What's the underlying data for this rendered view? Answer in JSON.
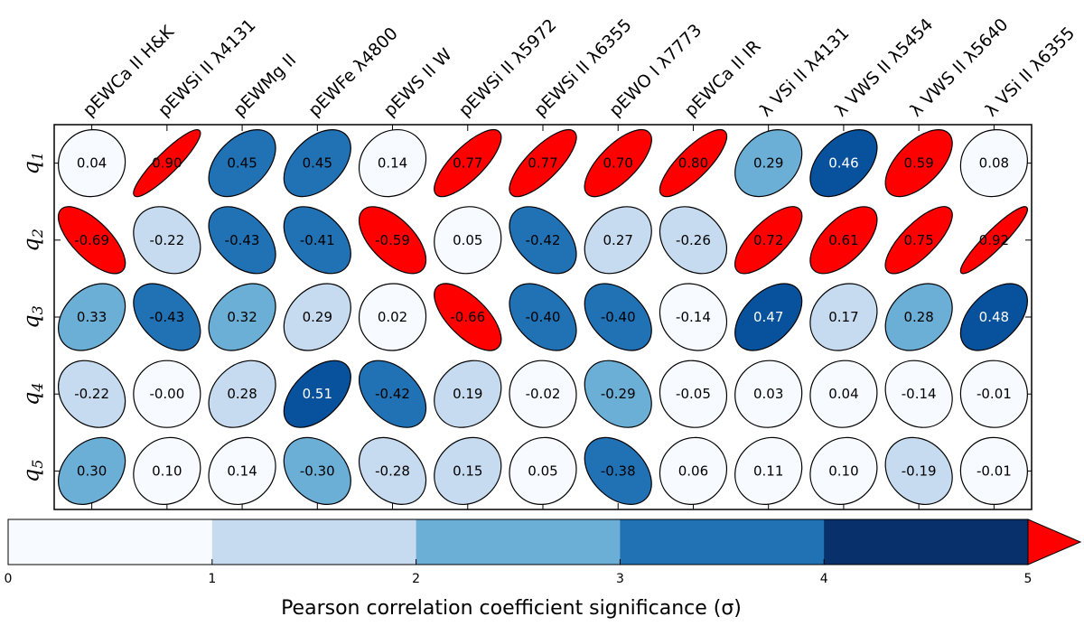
{
  "chart_data": {
    "type": "heatmap",
    "title": "",
    "columns": [
      "pEWCa II H&K",
      "pEWSi II λ4131",
      "pEWMg II",
      "pEWFe λ4800",
      "pEWS II W",
      "pEWSi II λ5972",
      "pEWSi II λ6355",
      "pEWO I λ7773",
      "pEWCa II IR",
      "λ VSi II λ4131",
      "λ VWS II λ5454",
      "λ VWS II λ5640",
      "λ VSi II λ6355"
    ],
    "rows": [
      {
        "base": "q",
        "sub": "1"
      },
      {
        "base": "q",
        "sub": "2"
      },
      {
        "base": "q",
        "sub": "3"
      },
      {
        "base": "q",
        "sub": "4"
      },
      {
        "base": "q",
        "sub": "5"
      }
    ],
    "values": [
      [
        0.04,
        0.9,
        0.45,
        0.45,
        0.14,
        0.77,
        0.77,
        0.7,
        0.8,
        0.29,
        0.46,
        0.59,
        0.08
      ],
      [
        -0.69,
        -0.22,
        -0.43,
        -0.41,
        -0.59,
        0.05,
        -0.42,
        0.27,
        -0.26,
        0.72,
        0.61,
        0.75,
        0.92
      ],
      [
        0.33,
        -0.43,
        0.32,
        0.29,
        0.02,
        -0.66,
        -0.4,
        -0.4,
        -0.14,
        0.47,
        0.17,
        0.28,
        0.48
      ],
      [
        -0.22,
        -0.0,
        0.28,
        0.51,
        -0.42,
        0.19,
        -0.02,
        -0.29,
        -0.05,
        0.03,
        0.04,
        -0.14,
        -0.01
      ],
      [
        0.3,
        0.1,
        0.14,
        -0.3,
        -0.28,
        0.15,
        0.05,
        -0.38,
        0.06,
        0.11,
        0.1,
        -0.19,
        -0.01
      ]
    ],
    "value_labels": [
      [
        "0.04",
        "0.90",
        "0.45",
        "0.45",
        "0.14",
        "0.77",
        "0.77",
        "0.70",
        "0.80",
        "0.29",
        "0.46",
        "0.59",
        "0.08"
      ],
      [
        "-0.69",
        "-0.22",
        "-0.43",
        "-0.41",
        "-0.59",
        "0.05",
        "-0.42",
        "0.27",
        "-0.26",
        "0.72",
        "0.61",
        "0.75",
        "0.92"
      ],
      [
        "0.33",
        "-0.43",
        "0.32",
        "0.29",
        "0.02",
        "-0.66",
        "-0.40",
        "-0.40",
        "-0.14",
        "0.47",
        "0.17",
        "0.28",
        "0.48"
      ],
      [
        "-0.22",
        "-0.00",
        "0.28",
        "0.51",
        "-0.42",
        "0.19",
        "-0.02",
        "-0.29",
        "-0.05",
        "0.03",
        "0.04",
        "-0.14",
        "-0.01"
      ],
      [
        "0.30",
        "0.10",
        "0.14",
        "-0.30",
        "-0.28",
        "0.15",
        "0.05",
        "-0.38",
        "0.06",
        "0.11",
        "0.10",
        "-0.19",
        "-0.01"
      ]
    ],
    "significance_bin": [
      [
        0,
        5,
        3,
        3,
        0,
        5,
        5,
        5,
        5,
        2,
        4,
        5,
        0
      ],
      [
        5,
        1,
        3,
        3,
        5,
        0,
        3,
        1,
        1,
        5,
        5,
        5,
        5
      ],
      [
        2,
        3,
        2,
        1,
        0,
        5,
        3,
        3,
        0,
        4,
        1,
        2,
        4
      ],
      [
        1,
        0,
        1,
        4,
        3,
        1,
        0,
        2,
        0,
        0,
        0,
        0,
        0
      ],
      [
        2,
        0,
        0,
        2,
        1,
        1,
        0,
        3,
        0,
        0,
        0,
        1,
        0
      ]
    ],
    "colorbar": {
      "label": "Pearson correlation coefficient significance (σ)",
      "ticks": [
        "0",
        "1",
        "2",
        "3",
        "4",
        "5"
      ],
      "range": [
        0,
        5
      ],
      "colors": [
        "#f7fbff",
        "#c6dbef",
        "#6baed6",
        "#2171b5",
        "#08306b"
      ],
      "over_color": "#ff0000"
    },
    "cell_colors": [
      "#f7fbff",
      "#c6dbef",
      "#6baed6",
      "#2171b5",
      "#08519c",
      "#ff0000"
    ]
  }
}
